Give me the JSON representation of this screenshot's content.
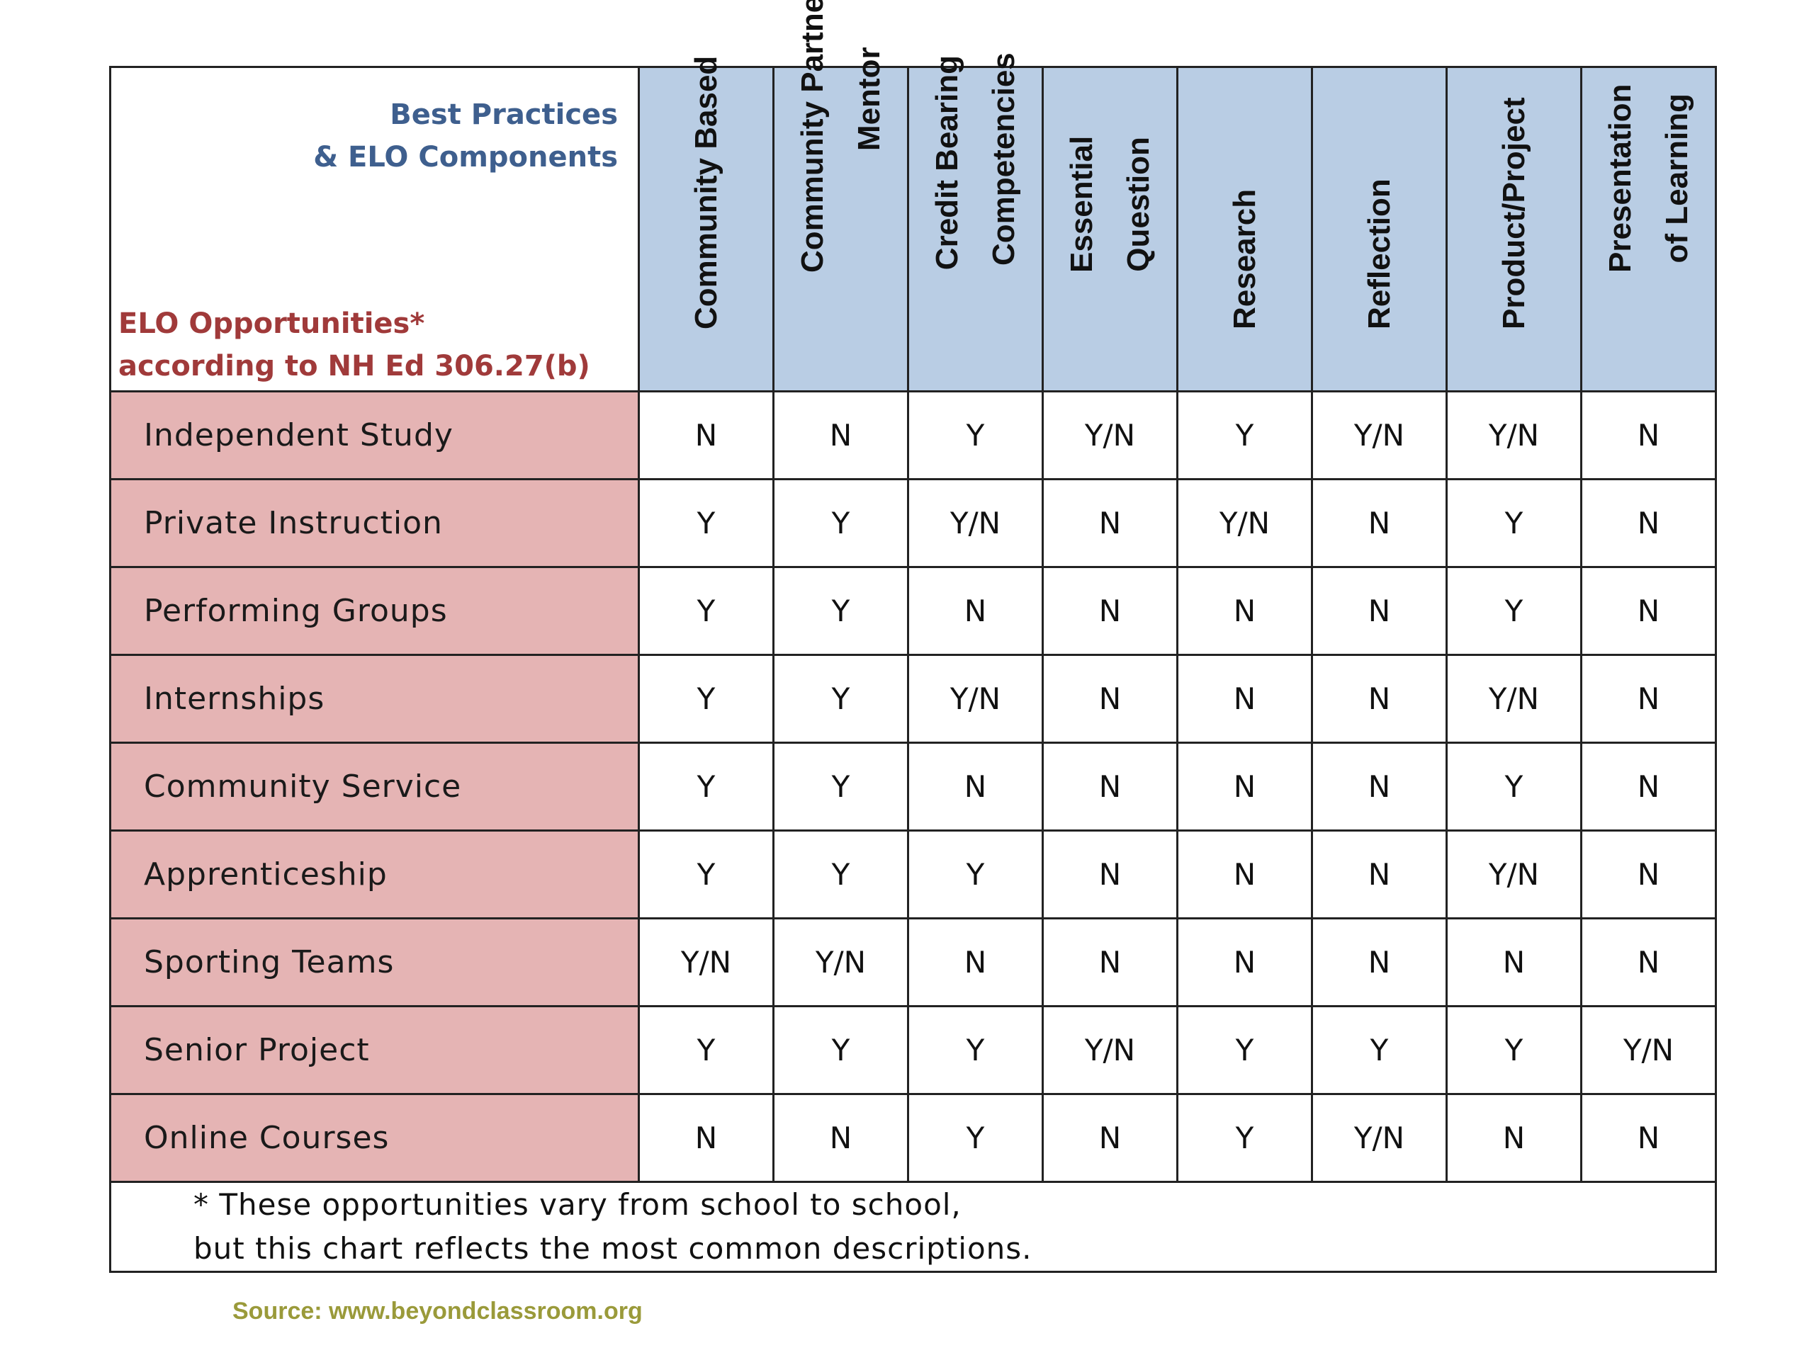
{
  "header": {
    "best_practices_line1": "Best Practices",
    "best_practices_line2": "& ELO Components",
    "opportunities_line1": "ELO Opportunities*",
    "opportunities_line2": "according to NH Ed 306.27(b)"
  },
  "columns": [
    {
      "line1": "Community Based",
      "line2": ""
    },
    {
      "line1": "Community Partner/",
      "line2": "Mentor"
    },
    {
      "line1": "Credit Bearing",
      "line2": "Competencies"
    },
    {
      "line1": "Essential",
      "line2": "Question"
    },
    {
      "line1": "Research",
      "line2": ""
    },
    {
      "line1": "Reflection",
      "line2": ""
    },
    {
      "line1": "Product/Project",
      "line2": ""
    },
    {
      "line1": "Presentation",
      "line2": "of Learning"
    }
  ],
  "rows": [
    {
      "label": "Independent Study",
      "values": [
        "N",
        "N",
        "Y",
        "Y/N",
        "Y",
        "Y/N",
        "Y/N",
        "N"
      ]
    },
    {
      "label": "Private Instruction",
      "values": [
        "Y",
        "Y",
        "Y/N",
        "N",
        "Y/N",
        "N",
        "Y",
        "N"
      ]
    },
    {
      "label": "Performing Groups",
      "values": [
        "Y",
        "Y",
        "N",
        "N",
        "N",
        "N",
        "Y",
        "N"
      ]
    },
    {
      "label": "Internships",
      "values": [
        "Y",
        "Y",
        "Y/N",
        "N",
        "N",
        "N",
        "Y/N",
        "N"
      ]
    },
    {
      "label": "Community Service",
      "values": [
        "Y",
        "Y",
        "N",
        "N",
        "N",
        "N",
        "Y",
        "N"
      ]
    },
    {
      "label": "Apprenticeship",
      "values": [
        "Y",
        "Y",
        "Y",
        "N",
        "N",
        "N",
        "Y/N",
        "N"
      ]
    },
    {
      "label": "Sporting Teams",
      "values": [
        "Y/N",
        "Y/N",
        "N",
        "N",
        "N",
        "N",
        "N",
        "N"
      ]
    },
    {
      "label": "Senior Project",
      "values": [
        "Y",
        "Y",
        "Y",
        "Y/N",
        "Y",
        "Y",
        "Y",
        "Y/N"
      ]
    },
    {
      "label": "Online Courses",
      "values": [
        "N",
        "N",
        "Y",
        "N",
        "Y",
        "Y/N",
        "N",
        "N"
      ]
    }
  ],
  "footnote": {
    "line1": "* These opportunities vary from school to school,",
    "line2": "but this chart reflects the most common descriptions."
  },
  "source": "Source: www.beyondclassroom.org",
  "colors": {
    "header_blue": "#b9cde4",
    "row_pink": "#e5b4b4",
    "title_blue": "#3e5f8e",
    "title_red": "#a03a3a",
    "source_olive": "#9a9a3a"
  }
}
